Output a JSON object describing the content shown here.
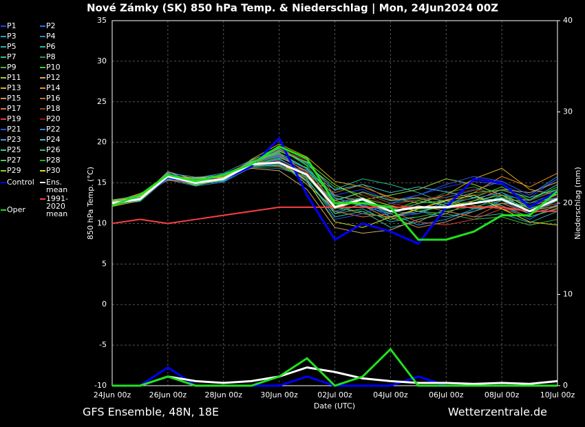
{
  "chart_data": {
    "type": "line",
    "title": "Nové Zámky  (SK)  850 hPa Temp. & Niederschlag | Mon, 24Jun2024 00Z",
    "subtitle": "GFS Ensemble, 48N, 18E",
    "source": "Wetterzentrale.de",
    "x_label": "Date (UTC)",
    "y_label": "850 hPa Temp. (°C)",
    "y2_label": "Niederschlag (mm)",
    "x": [
      "24Jun 00z",
      "25Jun 00z",
      "26Jun 00z",
      "27Jun 00z",
      "28Jun 00z",
      "29Jun 00z",
      "30Jun 00z",
      "01Jul 00z",
      "02Jul 00z",
      "03Jul 00z",
      "04Jul 00z",
      "05Jul 00z",
      "06Jul 00z",
      "07Jul 00z",
      "08Jul 00z",
      "09Jul 00z",
      "10Jul 00z"
    ],
    "ylim": [
      -10,
      35
    ],
    "yticks": [
      -10,
      -5,
      0,
      5,
      10,
      15,
      20,
      25,
      30,
      35
    ],
    "y2lim": [
      0,
      40
    ],
    "y2ticks": [
      0,
      10,
      20,
      30,
      40
    ],
    "grid": true,
    "series": [
      {
        "name": "P1",
        "color": "#2040ff",
        "values": [
          12.3,
          13.2,
          15.5,
          15.3,
          15.8,
          17.5,
          18.2,
          16.5,
          13.5,
          14.2,
          12.8,
          13.5,
          14.5,
          15.2,
          14.8,
          13.2,
          15.5
        ]
      },
      {
        "name": "P2",
        "color": "#2a6cff",
        "values": [
          12.6,
          12.8,
          16.1,
          14.8,
          15.2,
          17.1,
          17.8,
          15.2,
          11.5,
          12.4,
          10.8,
          11.2,
          12.8,
          13.5,
          12.2,
          10.5,
          12.4
        ]
      },
      {
        "name": "P3",
        "color": "#2aa0c8",
        "values": [
          12.4,
          13.4,
          15.9,
          15.6,
          16.2,
          17.8,
          19.2,
          17.5,
          13.2,
          12.1,
          11.2,
          9.8,
          10.5,
          11.8,
          13.5,
          12.8,
          14.2
        ]
      },
      {
        "name": "P4",
        "color": "#2f88c0",
        "values": [
          12.8,
          13.1,
          15.4,
          14.6,
          15.1,
          16.9,
          16.8,
          15.8,
          12.8,
          13.8,
          12.5,
          12.9,
          13.2,
          14.1,
          15.2,
          13.5,
          15.8
        ]
      },
      {
        "name": "P5",
        "color": "#30b0b0",
        "values": [
          12.2,
          12.9,
          16.3,
          15.1,
          15.9,
          17.6,
          18.5,
          16.8,
          11.2,
          11.8,
          10.2,
          10.8,
          11.5,
          10.8,
          11.2,
          10.1,
          11.5
        ]
      },
      {
        "name": "P6",
        "color": "#20c090",
        "values": [
          12.7,
          13.5,
          15.7,
          15.4,
          15.3,
          17.2,
          17.9,
          16.2,
          14.2,
          15.5,
          14.8,
          13.8,
          12.5,
          11.8,
          12.5,
          12.2,
          13.1
        ]
      },
      {
        "name": "P7",
        "color": "#30c0a0",
        "values": [
          12.5,
          13.3,
          16.0,
          14.9,
          15.6,
          17.4,
          18.8,
          15.5,
          10.8,
          11.5,
          9.5,
          10.2,
          11.8,
          12.5,
          13.8,
          11.8,
          12.9
        ]
      },
      {
        "name": "P8",
        "color": "#20a050",
        "values": [
          12.4,
          12.7,
          15.6,
          15.2,
          15.7,
          17.0,
          17.2,
          16.6,
          12.5,
          12.8,
          11.8,
          12.4,
          13.8,
          14.5,
          13.2,
          12.5,
          13.8
        ]
      },
      {
        "name": "P9",
        "color": "#40c040",
        "values": [
          12.6,
          13.6,
          15.8,
          15.5,
          15.4,
          17.7,
          19.5,
          17.2,
          14.5,
          13.5,
          12.2,
          11.5,
          11.2,
          10.5,
          10.8,
          9.8,
          10.5
        ]
      },
      {
        "name": "P10",
        "color": "#30e020",
        "values": [
          12.3,
          13.0,
          15.5,
          15.0,
          16.1,
          17.3,
          18.1,
          16.9,
          12.2,
          13.2,
          11.6,
          12.8,
          12.2,
          13.2,
          14.5,
          12.9,
          14.5
        ]
      },
      {
        "name": "P11",
        "color": "#a0d040",
        "values": [
          12.9,
          13.4,
          16.2,
          15.7,
          15.5,
          17.5,
          17.6,
          14.8,
          11.8,
          12.9,
          13.5,
          14.2,
          15.5,
          14.8,
          13.5,
          11.5,
          12.2
        ]
      },
      {
        "name": "P12",
        "color": "#d0b060",
        "values": [
          12.5,
          13.2,
          15.6,
          14.7,
          15.8,
          16.8,
          16.5,
          14.2,
          9.5,
          8.8,
          9.2,
          10.5,
          11.2,
          12.8,
          14.2,
          13.8,
          15.1
        ]
      },
      {
        "name": "P13",
        "color": "#e0b020",
        "values": [
          12.1,
          12.8,
          15.9,
          15.3,
          15.2,
          17.9,
          19.8,
          18.2,
          15.2,
          14.5,
          13.2,
          12.5,
          13.5,
          15.5,
          16.8,
          14.2,
          13.5
        ]
      },
      {
        "name": "P14",
        "color": "#f09020",
        "values": [
          12.6,
          13.7,
          15.3,
          15.1,
          15.9,
          17.1,
          17.5,
          16.1,
          12.8,
          12.2,
          10.5,
          11.8,
          12.9,
          13.8,
          15.8,
          14.5,
          16.2
        ]
      },
      {
        "name": "P15",
        "color": "#d09060",
        "values": [
          12.4,
          13.1,
          16.4,
          15.4,
          15.6,
          17.4,
          18.3,
          16.4,
          12.1,
          11.2,
          10.8,
          9.5,
          10.2,
          11.5,
          12.5,
          11.2,
          12.1
        ]
      },
      {
        "name": "P16",
        "color": "#c07030",
        "values": [
          12.7,
          13.3,
          15.7,
          14.8,
          15.3,
          17.2,
          17.0,
          15.6,
          13.8,
          14.8,
          12.9,
          13.2,
          12.8,
          12.2,
          11.8,
          10.8,
          11.9
        ]
      },
      {
        "name": "P17",
        "color": "#e07040",
        "values": [
          12.3,
          13.5,
          15.8,
          15.6,
          16.0,
          17.6,
          18.6,
          16.2,
          11.5,
          10.8,
          11.2,
          12.2,
          11.5,
          10.8,
          12.5,
          12.1,
          13.2
        ]
      },
      {
        "name": "P18",
        "color": "#a04020",
        "values": [
          12.5,
          12.9,
          15.5,
          15.2,
          15.4,
          16.9,
          17.3,
          15.9,
          12.9,
          13.8,
          12.5,
          11.8,
          12.2,
          13.5,
          14.2,
          12.8,
          14.1
        ]
      },
      {
        "name": "P19",
        "color": "#e04040",
        "values": [
          12.8,
          13.2,
          16.1,
          15.0,
          15.7,
          17.8,
          19.1,
          17.8,
          13.5,
          12.5,
          11.5,
          10.2,
          9.8,
          10.5,
          11.8,
          11.5,
          12.5
        ]
      },
      {
        "name": "P20",
        "color": "#a01010",
        "values": [
          12.2,
          13.6,
          15.6,
          15.5,
          15.5,
          17.3,
          17.7,
          16.3,
          12.4,
          13.5,
          12.2,
          12.9,
          13.5,
          14.2,
          13.5,
          12.2,
          13.5
        ]
      },
      {
        "name": "P21",
        "color": "#3050e0",
        "values": [
          12.6,
          13.0,
          15.9,
          14.9,
          16.2,
          17.0,
          17.4,
          15.1,
          10.5,
          11.2,
          12.5,
          13.5,
          14.8,
          15.8,
          15.2,
          13.5,
          15.5
        ]
      },
      {
        "name": "P22",
        "color": "#3080e0",
        "values": [
          12.4,
          13.3,
          15.4,
          15.3,
          15.2,
          17.5,
          18.4,
          16.7,
          13.1,
          12.2,
          11.5,
          11.2,
          12.5,
          13.1,
          13.8,
          12.5,
          13.2
        ]
      },
      {
        "name": "P23",
        "color": "#40a0e0",
        "values": [
          12.5,
          13.4,
          16.2,
          15.7,
          15.9,
          17.2,
          18.0,
          16.0,
          12.5,
          13.2,
          10.8,
          11.5,
          10.8,
          11.5,
          12.8,
          11.2,
          12.8
        ]
      },
      {
        "name": "P24",
        "color": "#40c0d0",
        "values": [
          12.7,
          12.8,
          15.7,
          15.1,
          15.6,
          17.6,
          19.0,
          17.4,
          14.1,
          14.8,
          13.8,
          14.5,
          13.9,
          13.2,
          12.8,
          12.9,
          14.8
        ]
      },
      {
        "name": "P25",
        "color": "#30d0a0",
        "values": [
          12.3,
          13.1,
          15.8,
          14.8,
          15.3,
          17.1,
          17.2,
          15.4,
          11.2,
          12.5,
          12.1,
          11.8,
          11.9,
          12.5,
          13.2,
          11.8,
          13.1
        ]
      },
      {
        "name": "P26",
        "color": "#30c080",
        "values": [
          12.8,
          13.5,
          15.5,
          15.4,
          16.0,
          17.4,
          18.7,
          16.8,
          13.4,
          12.8,
          11.2,
          12.5,
          12.8,
          11.8,
          12.2,
          10.8,
          11.8
        ]
      },
      {
        "name": "P27",
        "color": "#40d060",
        "values": [
          12.4,
          13.2,
          16.0,
          15.2,
          15.5,
          17.8,
          19.3,
          17.1,
          12.8,
          13.9,
          12.8,
          13.1,
          12.2,
          13.8,
          14.1,
          13.2,
          14.2
        ]
      },
      {
        "name": "P28",
        "color": "#20b030",
        "values": [
          12.6,
          13.0,
          15.6,
          15.5,
          15.8,
          17.0,
          17.1,
          15.7,
          11.9,
          11.5,
          10.5,
          10.8,
          11.5,
          12.1,
          12.8,
          11.9,
          12.8
        ]
      },
      {
        "name": "P29",
        "color": "#80e020",
        "values": [
          12.2,
          13.6,
          15.9,
          14.7,
          15.4,
          17.5,
          18.9,
          17.6,
          14.8,
          13.1,
          12.2,
          11.5,
          12.1,
          12.8,
          13.5,
          12.1,
          13.6
        ]
      },
      {
        "name": "P30",
        "color": "#e0e020",
        "values": [
          12.7,
          13.3,
          15.7,
          15.6,
          15.7,
          17.3,
          17.6,
          15.2,
          10.2,
          9.5,
          10.8,
          11.8,
          12.8,
          13.5,
          11.8,
          10.2,
          9.8
        ]
      },
      {
        "name": "Control",
        "color": "#0000ff",
        "width": 3,
        "values": [
          12.5,
          13.0,
          15.7,
          15.0,
          15.5,
          17.0,
          20.5,
          13.5,
          8.0,
          10.0,
          9.0,
          7.5,
          12.0,
          15.5,
          15.0,
          12.0,
          14.0
        ],
        "precip": [
          0,
          0,
          2,
          0,
          0,
          0,
          0,
          1,
          0,
          0,
          0,
          1,
          0,
          0,
          0,
          0,
          0
        ]
      },
      {
        "name": "Ens. mean",
        "color": "#ffffff",
        "width": 3,
        "values": [
          12.5,
          13.0,
          15.8,
          15.0,
          15.5,
          17.3,
          17.5,
          16.0,
          12.0,
          13.0,
          11.5,
          12.0,
          12.0,
          12.5,
          13.0,
          11.5,
          13.0
        ],
        "precip": [
          0,
          0,
          1,
          0.5,
          0.3,
          0.5,
          1,
          2,
          1.5,
          0.8,
          0.5,
          0.3,
          0.3,
          0.2,
          0.3,
          0.2,
          0.5
        ]
      },
      {
        "name": "1991-2020 mean",
        "color": "#ff4040",
        "width": 2,
        "values": [
          10.0,
          10.5,
          10.0,
          10.5,
          11.0,
          11.5,
          12.0,
          12.0,
          12.0,
          12.0,
          12.0,
          12.0,
          12.0,
          12.0,
          12.0,
          11.5,
          11.5
        ]
      },
      {
        "name": "Oper",
        "color": "#20e020",
        "width": 3,
        "values": [
          12.2,
          13.5,
          16.0,
          15.2,
          16.0,
          17.3,
          19.5,
          18.0,
          12.5,
          12.5,
          12.0,
          8.0,
          8.0,
          9.0,
          11.0,
          11.0,
          14.0
        ],
        "precip": [
          0,
          0,
          1,
          0,
          0,
          0,
          1,
          3,
          0,
          1,
          4,
          0,
          0,
          0,
          0,
          0,
          0
        ]
      }
    ]
  }
}
